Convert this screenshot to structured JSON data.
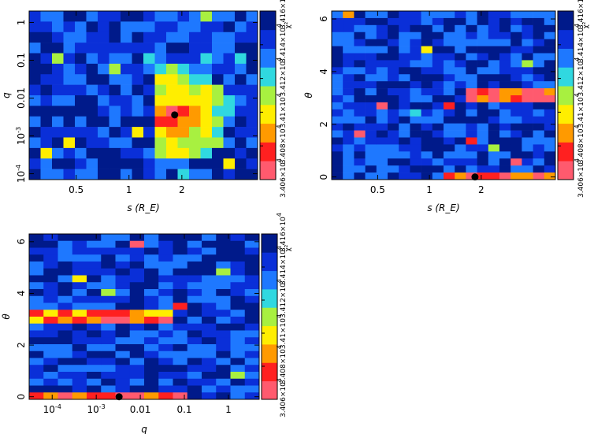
{
  "chart_data": [
    {
      "type": "heatmap",
      "panel": "top-left",
      "xlabel": "s (R_E)",
      "ylabel": "q",
      "x_scale": "log",
      "y_scale": "log",
      "xlim": [
        0.27,
        5.4
      ],
      "ylim": [
        7e-05,
        2.0
      ],
      "x_ticks": [
        {
          "v": 0.5,
          "label": "0.5"
        },
        {
          "v": 1,
          "label": "1"
        },
        {
          "v": 2,
          "label": "2"
        }
      ],
      "y_ticks": [
        {
          "v": 0.0001,
          "label": "10^-4"
        },
        {
          "v": 0.001,
          "label": "10^-3"
        },
        {
          "v": 0.01,
          "label": "0.01"
        },
        {
          "v": 0.1,
          "label": "0.1"
        },
        {
          "v": 1,
          "label": "1"
        }
      ],
      "grid": {
        "nx": 20,
        "ny": 16
      },
      "best_fit": {
        "x": 1.82,
        "y": 0.0036
      },
      "colorbar": {
        "label": "χ²",
        "ticks": [
          "3.406×10^4",
          "3.408×10^4",
          "3.41×10^4",
          "3.412×10^4",
          "3.414×10^4",
          "3.416×10^4"
        ]
      },
      "colormap": [
        "#ff5a6e",
        "#ff2020",
        "#ff9a00",
        "#ffee00",
        "#a8f040",
        "#30d8e0",
        "#1e78ff",
        "#0a2fd8",
        "#001a8a"
      ]
    },
    {
      "type": "heatmap",
      "panel": "top-right",
      "xlabel": "s (R_E)",
      "ylabel": "θ",
      "x_scale": "log",
      "y_scale": "linear",
      "xlim": [
        0.27,
        5.4
      ],
      "ylim": [
        -0.1,
        6.3
      ],
      "x_ticks": [
        {
          "v": 0.5,
          "label": "0.5"
        },
        {
          "v": 1,
          "label": "1"
        },
        {
          "v": 2,
          "label": "2"
        }
      ],
      "y_ticks": [
        {
          "v": 0,
          "label": "0"
        },
        {
          "v": 2,
          "label": "2"
        },
        {
          "v": 4,
          "label": "4"
        },
        {
          "v": 6,
          "label": "6"
        }
      ],
      "grid": {
        "nx": 20,
        "ny": 24
      },
      "best_fit": {
        "x": 1.84,
        "y": 0.0
      },
      "colorbar": {
        "label": "χ²",
        "ticks": [
          "3.406×10^4",
          "3.408×10^4",
          "3.41×10^4",
          "3.412×10^4",
          "3.414×10^4",
          "3.416×10^4"
        ]
      },
      "colormap": [
        "#ff5a6e",
        "#ff2020",
        "#ff9a00",
        "#ffee00",
        "#a8f040",
        "#30d8e0",
        "#1e78ff",
        "#0a2fd8",
        "#001a8a"
      ]
    },
    {
      "type": "heatmap",
      "panel": "bottom-left",
      "xlabel": "q",
      "ylabel": "θ",
      "x_scale": "log",
      "y_scale": "linear",
      "xlim": [
        3e-05,
        5.0
      ],
      "ylim": [
        -0.1,
        6.3
      ],
      "x_ticks": [
        {
          "v": 0.0001,
          "label": "10^-4"
        },
        {
          "v": 0.001,
          "label": "10^-3"
        },
        {
          "v": 0.01,
          "label": "0.01"
        },
        {
          "v": 0.1,
          "label": "0.1"
        },
        {
          "v": 1,
          "label": "1"
        }
      ],
      "y_ticks": [
        {
          "v": 0,
          "label": "0"
        },
        {
          "v": 2,
          "label": "2"
        },
        {
          "v": 4,
          "label": "4"
        },
        {
          "v": 6,
          "label": "6"
        }
      ],
      "grid": {
        "nx": 16,
        "ny": 24
      },
      "best_fit": {
        "x": 0.0033,
        "y": 0.0
      },
      "colorbar": {
        "label": "χ²",
        "ticks": [
          "3.406×10^4",
          "3.408×10^4",
          "3.41×10^4",
          "3.412×10^4",
          "3.414×10^4",
          "3.416×10^4"
        ]
      },
      "colormap": [
        "#ff5a6e",
        "#ff2020",
        "#ff9a00",
        "#ffee00",
        "#a8f040",
        "#30d8e0",
        "#1e78ff",
        "#0a2fd8",
        "#001a8a"
      ]
    }
  ]
}
